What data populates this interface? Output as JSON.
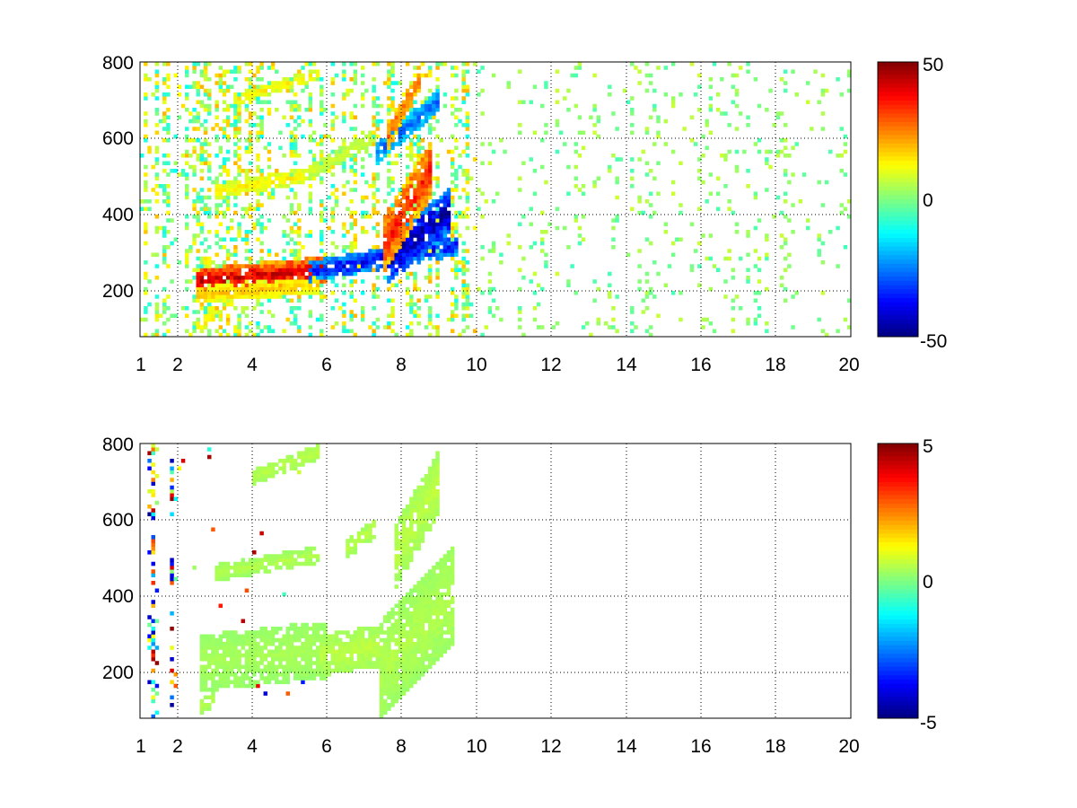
{
  "chart_data": [
    {
      "type": "heatmap",
      "title": "",
      "xlabel": "",
      "ylabel": "",
      "xlim": [
        1,
        20
      ],
      "ylim": [
        80,
        800
      ],
      "x_ticks": [
        1,
        2,
        4,
        6,
        8,
        10,
        12,
        14,
        16,
        18,
        20
      ],
      "x_tick_labels": [
        "1",
        "2",
        "4",
        "6",
        "8",
        "10",
        "12",
        "14",
        "16",
        "18",
        "20"
      ],
      "y_ticks": [
        200,
        400,
        600,
        800
      ],
      "y_tick_labels": [
        "200",
        "400",
        "600",
        "800"
      ],
      "grid": true,
      "colormap": "jet",
      "clim": [
        -50,
        50
      ],
      "colorbar_ticks": [
        50,
        0,
        -50
      ],
      "colorbar_tick_labels": [
        "50",
        "0",
        "-50"
      ],
      "features": [
        {
          "shape": "band",
          "x": [
            2.5,
            6.0
          ],
          "y_center": [
            225,
            255
          ],
          "thickness": 70,
          "value": 42
        },
        {
          "shape": "band",
          "x": [
            2.5,
            5.8
          ],
          "y_center": [
            190,
            215
          ],
          "thickness": 45,
          "value": 18
        },
        {
          "shape": "band",
          "x": [
            5.5,
            9.5
          ],
          "y_center": [
            250,
            320
          ],
          "thickness": 55,
          "value": -38
        },
        {
          "shape": "band",
          "x": [
            7.6,
            9.3
          ],
          "y_center": [
            280,
            410
          ],
          "thickness": 120,
          "value": -46
        },
        {
          "shape": "band",
          "x": [
            7.5,
            8.8
          ],
          "y_center": [
            320,
            520
          ],
          "thickness": 150,
          "value": 35
        },
        {
          "shape": "band",
          "x": [
            3.0,
            5.8
          ],
          "y_center": [
            460,
            510
          ],
          "thickness": 40,
          "value": 14
        },
        {
          "shape": "band",
          "x": [
            5.5,
            7.2
          ],
          "y_center": [
            510,
            600
          ],
          "thickness": 40,
          "value": 8
        },
        {
          "shape": "band",
          "x": [
            7.3,
            9.0
          ],
          "y_center": [
            560,
            700
          ],
          "thickness": 60,
          "value": -28
        },
        {
          "shape": "band",
          "x": [
            7.6,
            8.5
          ],
          "y_center": [
            600,
            760
          ],
          "thickness": 70,
          "value": 28
        },
        {
          "shape": "band",
          "x": [
            3.5,
            5.8
          ],
          "y_center": [
            700,
            770
          ],
          "thickness": 30,
          "value": 14
        },
        {
          "shape": "band",
          "x": [
            2.5,
            3.0
          ],
          "y_center": [
            100,
            140
          ],
          "thickness": 40,
          "value": 16
        },
        {
          "shape": "scatter",
          "x": [
            1,
            10
          ],
          "y": [
            80,
            800
          ],
          "density": 0.28,
          "values": [
            -12,
            20
          ]
        },
        {
          "shape": "scatter",
          "x": [
            10,
            20
          ],
          "y": [
            80,
            800
          ],
          "density": 0.07,
          "values": [
            -6,
            8
          ]
        }
      ]
    },
    {
      "type": "heatmap",
      "title": "",
      "xlabel": "",
      "ylabel": "",
      "xlim": [
        1,
        20
      ],
      "ylim": [
        80,
        800
      ],
      "x_ticks": [
        1,
        2,
        4,
        6,
        8,
        10,
        12,
        14,
        16,
        18,
        20
      ],
      "x_tick_labels": [
        "1",
        "2",
        "4",
        "6",
        "8",
        "10",
        "12",
        "14",
        "16",
        "18",
        "20"
      ],
      "y_ticks": [
        200,
        400,
        600,
        800
      ],
      "y_tick_labels": [
        "200",
        "400",
        "600",
        "800"
      ],
      "grid": true,
      "colormap": "jet",
      "clim": [
        -5,
        5
      ],
      "colorbar_ticks": [
        5,
        0,
        -5
      ],
      "colorbar_tick_labels": [
        "5",
        "0",
        "-5"
      ],
      "features": [
        {
          "shape": "band",
          "x": [
            2.6,
            6.0
          ],
          "y_center": [
            225,
            260
          ],
          "thickness": 150,
          "value": 0.4
        },
        {
          "shape": "band",
          "x": [
            5.8,
            7.4
          ],
          "y_center": [
            245,
            270
          ],
          "thickness": 110,
          "value": 0.6
        },
        {
          "shape": "band",
          "x": [
            7.4,
            9.4
          ],
          "y_center": [
            210,
            400
          ],
          "thickness": 260,
          "value": 0.5
        },
        {
          "shape": "band",
          "x": [
            7.8,
            9.0
          ],
          "y_center": [
            500,
            700
          ],
          "thickness": 170,
          "value": 0.6
        },
        {
          "shape": "band",
          "x": [
            3.0,
            5.8
          ],
          "y_center": [
            460,
            510
          ],
          "thickness": 45,
          "value": 0.5
        },
        {
          "shape": "band",
          "x": [
            6.5,
            7.3
          ],
          "y_center": [
            520,
            580
          ],
          "thickness": 50,
          "value": 0.6
        },
        {
          "shape": "band",
          "x": [
            4.0,
            5.8
          ],
          "y_center": [
            710,
            780
          ],
          "thickness": 40,
          "value": 0.6
        },
        {
          "shape": "band",
          "x": [
            2.6,
            3.0
          ],
          "y_center": [
            110,
            130
          ],
          "thickness": 40,
          "value": 0.5
        },
        {
          "shape": "scatter",
          "x": [
            1.2,
            1.5
          ],
          "y": [
            80,
            800
          ],
          "density": 0.35,
          "values": [
            -5,
            5
          ]
        },
        {
          "shape": "scatter",
          "x": [
            1.8,
            2.0
          ],
          "y": [
            80,
            800
          ],
          "density": 0.2,
          "values": [
            -5,
            5
          ]
        },
        {
          "shape": "scatter",
          "x": [
            2.0,
            5.5
          ],
          "y": [
            80,
            800
          ],
          "density": 0.01,
          "values": [
            -5,
            5
          ]
        }
      ]
    }
  ]
}
